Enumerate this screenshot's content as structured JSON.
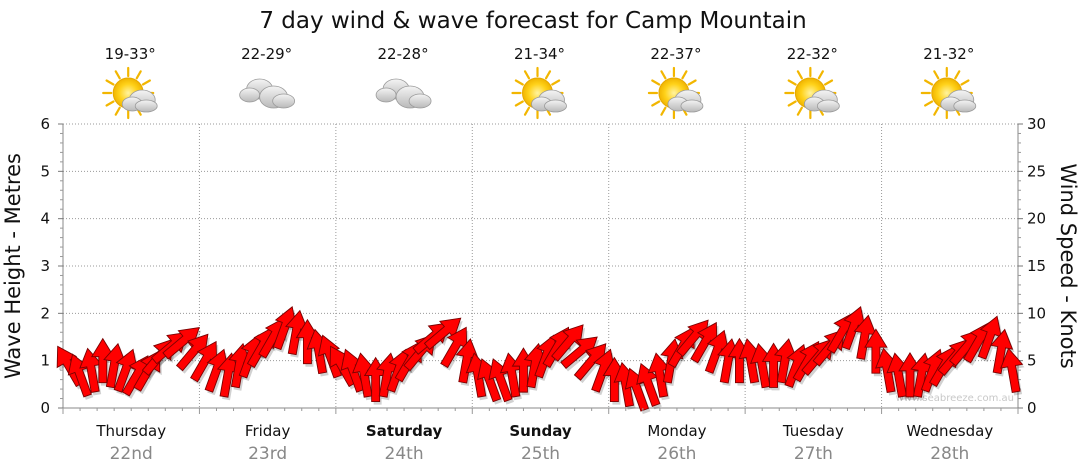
{
  "chart_data": {
    "type": "line",
    "title": "7 day wind & wave forecast for Camp Mountain",
    "ylabel_left": "Wave Height - Metres",
    "ylabel_right": "Wind Speed - Knots",
    "ylim_left": [
      0,
      6
    ],
    "ylim_right": [
      0,
      30
    ],
    "left_ticks": [
      "0",
      "1",
      "2",
      "3",
      "4",
      "5",
      "6"
    ],
    "right_ticks": [
      "0",
      "5",
      "10",
      "15",
      "20",
      "25",
      "30"
    ],
    "grid": true,
    "watermark": "www.seabreeze.com.au",
    "days": [
      {
        "name": "Thursday",
        "date": "22nd",
        "temp": "19-33°",
        "weather": "sun-cloud-icon",
        "bold": false
      },
      {
        "name": "Friday",
        "date": "23rd",
        "temp": "22-29°",
        "weather": "cloud-icon",
        "bold": false
      },
      {
        "name": "Saturday",
        "date": "24th",
        "temp": "22-28°",
        "weather": "cloud-icon",
        "bold": true
      },
      {
        "name": "Sunday",
        "date": "25th",
        "temp": "21-34°",
        "weather": "sun-cloud-icon",
        "bold": true
      },
      {
        "name": "Monday",
        "date": "26th",
        "temp": "22-37°",
        "weather": "sun-cloud-icon",
        "bold": false
      },
      {
        "name": "Tuesday",
        "date": "27th",
        "temp": "22-32°",
        "weather": "sun-cloud-icon",
        "bold": false
      },
      {
        "name": "Wednesday",
        "date": "28th",
        "temp": "21-32°",
        "weather": "sun-cloud-icon",
        "bold": false
      }
    ],
    "series": [
      {
        "name": "Wind",
        "color": "#ff0000",
        "day_offset_hours": [
          0,
          2,
          4,
          6,
          8,
          10,
          12,
          14,
          16,
          18,
          20,
          22
        ],
        "speed_knots": [
          [
            4.5,
            3.5,
            4,
            5,
            4.5,
            4,
            3.5,
            4,
            5.5,
            6.5,
            7,
            6
          ],
          [
            5,
            4,
            3.5,
            4.5,
            5.5,
            6.5,
            7.5,
            8.5,
            8,
            7,
            6,
            5.5
          ],
          [
            4.5,
            4,
            3.5,
            3,
            3.5,
            4,
            5,
            6,
            7.5,
            8,
            6.5,
            5
          ],
          [
            3.5,
            3,
            3,
            3.5,
            4,
            4.5,
            5.5,
            6.5,
            7,
            6,
            5,
            4
          ],
          [
            3,
            2.5,
            2,
            2.5,
            3.5,
            5,
            6.5,
            7.5,
            7,
            6,
            5,
            5
          ],
          [
            5,
            4.5,
            4.5,
            5,
            4.5,
            5,
            5.5,
            6.5,
            8,
            8.5,
            7.5,
            6
          ],
          [
            4,
            3.5,
            3.5,
            3.5,
            4,
            4.5,
            5.5,
            6.5,
            7,
            7.5,
            6,
            4
          ]
        ],
        "direction_deg": [
          [
            60,
            70,
            80,
            90,
            100,
            110,
            120,
            120,
            130,
            140,
            140,
            130
          ],
          [
            120,
            110,
            100,
            100,
            110,
            120,
            120,
            110,
            100,
            90,
            80,
            70
          ],
          [
            60,
            70,
            80,
            90,
            100,
            110,
            120,
            130,
            140,
            140,
            120,
            100
          ],
          [
            80,
            70,
            70,
            80,
            90,
            100,
            110,
            120,
            130,
            140,
            130,
            110
          ],
          [
            90,
            80,
            70,
            70,
            80,
            100,
            120,
            130,
            120,
            110,
            100,
            90
          ],
          [
            80,
            80,
            90,
            100,
            110,
            120,
            130,
            130,
            120,
            110,
            100,
            90
          ],
          [
            80,
            80,
            90,
            100,
            110,
            120,
            130,
            130,
            120,
            110,
            100,
            80
          ]
        ]
      }
    ]
  }
}
